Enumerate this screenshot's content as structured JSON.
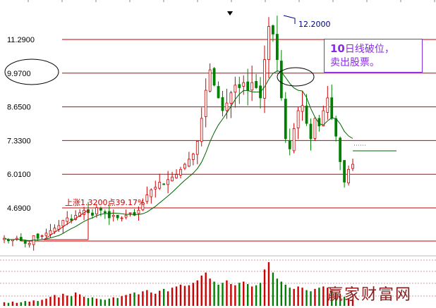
{
  "chart_data": {
    "type": "candlestick",
    "y_ticks": [
      "11.2900",
      "9.9700",
      "8.6500",
      "7.3300",
      "6.0100",
      "4.6900"
    ],
    "y_tick_values": [
      11.29,
      9.97,
      8.65,
      7.33,
      6.01,
      4.69
    ],
    "ylim": [
      3.3,
      12.6
    ],
    "peak_label": "12.2000",
    "peak_value": 12.2,
    "rise_label": "上涨1.3200点39.17%",
    "rise": {
      "points": 1.32,
      "percent": 39.17
    },
    "callout": {
      "num": "10",
      "text1": "日线破位，",
      "text2": "卖出股票。"
    },
    "ma_period_days": 10,
    "approx_closes": [
      3.5,
      3.4,
      3.45,
      3.5,
      3.4,
      3.3,
      3.3,
      3.6,
      3.5,
      3.6,
      3.7,
      3.8,
      3.9,
      4.0,
      4.2,
      4.3,
      4.2,
      4.4,
      4.5,
      4.6,
      4.5,
      4.4,
      4.7,
      4.6,
      4.5,
      4.3,
      4.4,
      4.3,
      4.3,
      4.4,
      4.5,
      4.4,
      4.6,
      4.9,
      5.2,
      5.4,
      5.5,
      5.7,
      5.6,
      5.8,
      5.9,
      6.0,
      6.2,
      6.4,
      6.6,
      6.8,
      7.3,
      8.2,
      9.3,
      10.1,
      9.5,
      9.0,
      8.5,
      8.8,
      9.2,
      9.5,
      9.4,
      9.6,
      9.3,
      9.6,
      9.4,
      9.0,
      10.5,
      11.8,
      11.5,
      10.5,
      9.0,
      7.4,
      7.0,
      7.8,
      8.5,
      8.7,
      8.0,
      7.4,
      8.2,
      7.9,
      8.5,
      9.0,
      8.2,
      7.5,
      6.5,
      5.7,
      6.2,
      6.4
    ],
    "approx_volumes": [
      6,
      5,
      7,
      5,
      6,
      8,
      7,
      9,
      8,
      10,
      12,
      15,
      18,
      14,
      20,
      17,
      16,
      22,
      19,
      15,
      13,
      14,
      12,
      11,
      10,
      12,
      14,
      13,
      16,
      18,
      20,
      22,
      19,
      24,
      26,
      22,
      20,
      25,
      28,
      24,
      30,
      32,
      35,
      33,
      34,
      38,
      42,
      50,
      55,
      45,
      40,
      35,
      38,
      42,
      36,
      34,
      38,
      40,
      36,
      32,
      34,
      38,
      60,
      72,
      55,
      45,
      40,
      35,
      30,
      28,
      32,
      30,
      26,
      24,
      28,
      30,
      32,
      30,
      26,
      22,
      18,
      15,
      12,
      10
    ],
    "grid": "horizontal"
  }
}
